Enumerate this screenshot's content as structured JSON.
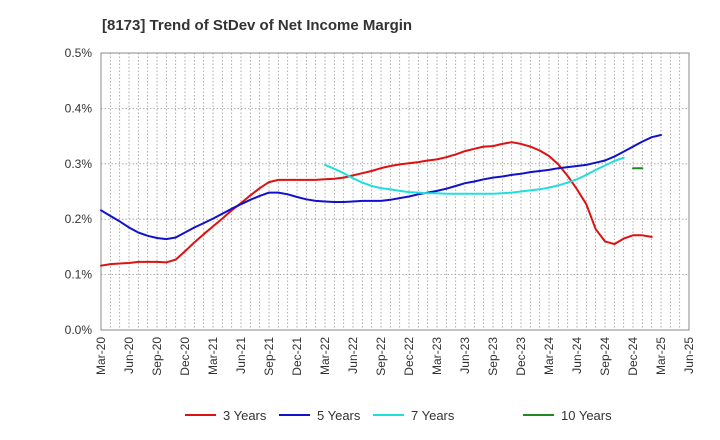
{
  "chart_data": {
    "type": "line",
    "title": "[8173]  Trend of StDev of Net Income Margin",
    "xlabel": "",
    "ylabel": "",
    "x_ticks": [
      "Mar-20",
      "Jun-20",
      "Sep-20",
      "Dec-20",
      "Mar-21",
      "Jun-21",
      "Sep-21",
      "Dec-21",
      "Mar-22",
      "Jun-22",
      "Sep-22",
      "Dec-22",
      "Mar-23",
      "Jun-23",
      "Sep-23",
      "Dec-23",
      "Mar-24",
      "Jun-24",
      "Sep-24",
      "Dec-24",
      "Mar-25",
      "Jun-25"
    ],
    "y_ticks": [
      {
        "value": 0.0,
        "label": "0.0%"
      },
      {
        "value": 0.1,
        "label": "0.1%"
      },
      {
        "value": 0.2,
        "label": "0.2%"
      },
      {
        "value": 0.3,
        "label": "0.3%"
      },
      {
        "value": 0.4,
        "label": "0.4%"
      },
      {
        "value": 0.5,
        "label": "0.5%"
      }
    ],
    "ylim": [
      0,
      0.5
    ],
    "grid": true,
    "legend_position": "bottom",
    "series": [
      {
        "name": "3 Years",
        "color": "#dd1111",
        "start": "Mar-20",
        "values": [
          0.116,
          0.119,
          0.12,
          0.121,
          0.123,
          0.123,
          0.123,
          0.122,
          0.127,
          0.142,
          0.158,
          0.173,
          0.187,
          0.201,
          0.216,
          0.229,
          0.243,
          0.256,
          0.267,
          0.271,
          0.271,
          0.271,
          0.271,
          0.271,
          0.272,
          0.273,
          0.275,
          0.279,
          0.283,
          0.287,
          0.292,
          0.296,
          0.299,
          0.301,
          0.303,
          0.306,
          0.308,
          0.312,
          0.317,
          0.323,
          0.327,
          0.331,
          0.332,
          0.336,
          0.339,
          0.336,
          0.331,
          0.324,
          0.314,
          0.299,
          0.278,
          0.254,
          0.227,
          0.182,
          0.16,
          0.155,
          0.165,
          0.171,
          0.171,
          0.168
        ]
      },
      {
        "name": "5 Years",
        "color": "#1111cc",
        "start": "Mar-20",
        "values": [
          0.216,
          0.206,
          0.196,
          0.185,
          0.176,
          0.17,
          0.166,
          0.164,
          0.167,
          0.176,
          0.185,
          0.193,
          0.201,
          0.21,
          0.219,
          0.227,
          0.235,
          0.242,
          0.248,
          0.248,
          0.245,
          0.24,
          0.236,
          0.233,
          0.232,
          0.231,
          0.231,
          0.232,
          0.233,
          0.233,
          0.233,
          0.235,
          0.238,
          0.241,
          0.245,
          0.248,
          0.251,
          0.255,
          0.26,
          0.265,
          0.268,
          0.272,
          0.275,
          0.277,
          0.28,
          0.282,
          0.285,
          0.287,
          0.289,
          0.292,
          0.294,
          0.296,
          0.298,
          0.302,
          0.306,
          0.313,
          0.322,
          0.331,
          0.34,
          0.348,
          0.352
        ]
      },
      {
        "name": "7 Years",
        "color": "#22dddd",
        "start": "Mar-22",
        "values": [
          0.298,
          0.291,
          0.283,
          0.274,
          0.266,
          0.26,
          0.256,
          0.254,
          0.251,
          0.249,
          0.248,
          0.247,
          0.247,
          0.246,
          0.246,
          0.246,
          0.246,
          0.246,
          0.246,
          0.247,
          0.248,
          0.25,
          0.252,
          0.254,
          0.257,
          0.261,
          0.266,
          0.272,
          0.28,
          0.289,
          0.297,
          0.305,
          0.311
        ]
      },
      {
        "name": "10 Years",
        "color": "#228822",
        "start": "Dec-24",
        "values": [
          0.292,
          0.292
        ]
      }
    ]
  }
}
